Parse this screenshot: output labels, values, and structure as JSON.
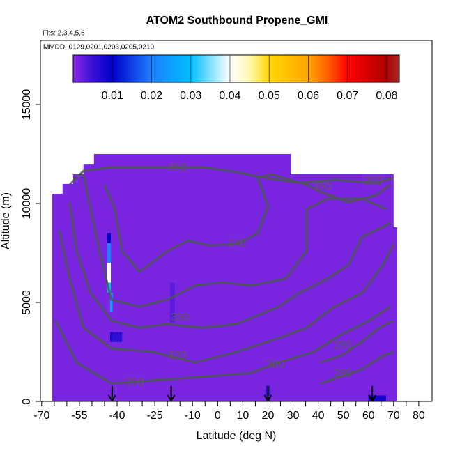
{
  "chart_data": {
    "type": "curtain",
    "title": "ATOM2 Southbound Propene_GMI",
    "subtitle": "Flts: 2,3,4,5,6",
    "annotation": "MMDD: 0129,0201,0203,0205,0210",
    "x_label": "Latitude (deg N)",
    "y_label": "Altitude (m)",
    "xlim": [
      -70.5,
      85.3
    ],
    "ylim": [
      0,
      18240
    ],
    "xticks": [
      -70,
      -55,
      -40,
      -25,
      -10,
      0,
      10,
      20,
      30,
      40,
      50,
      60,
      70,
      80
    ],
    "xminorticks": [
      -65,
      -60,
      -50,
      -45,
      -35,
      -30,
      -20,
      -15,
      -5,
      5,
      15,
      25,
      35,
      45,
      55,
      65,
      75
    ],
    "yticks": [
      0,
      5000,
      10000,
      15000
    ],
    "clim": [
      0,
      0.0832
    ],
    "cticks": [
      0.01,
      0.02,
      0.03,
      0.04,
      0.05,
      0.06,
      0.07,
      0.08
    ],
    "colormap": [
      [
        0,
        "#8a2be2"
      ],
      [
        0.005,
        "#3a10d8"
      ],
      [
        0.01,
        "#0000c8"
      ],
      [
        0.02,
        "#1e7fff"
      ],
      [
        0.03,
        "#00bfff"
      ],
      [
        0.04,
        "#ffffff"
      ],
      [
        0.045,
        "#fff8b0"
      ],
      [
        0.05,
        "#ffd700"
      ],
      [
        0.06,
        "#ffa500"
      ],
      [
        0.065,
        "#ff6000"
      ],
      [
        0.07,
        "#ff0000"
      ],
      [
        0.08,
        "#b00000"
      ],
      [
        0.0832,
        "#a52a2a"
      ]
    ],
    "field": {
      "value": 0.001,
      "outline": [
        [
          -65.8,
          0
        ],
        [
          -65.8,
          10490
        ],
        [
          -61.7,
          10490
        ],
        [
          -61.7,
          10990
        ],
        [
          -57.5,
          10990
        ],
        [
          -57.5,
          11480
        ],
        [
          -53.4,
          11480
        ],
        [
          -53.4,
          11970
        ],
        [
          -49.2,
          11970
        ],
        [
          -49.2,
          12500
        ],
        [
          29.2,
          12500
        ],
        [
          29.2,
          11480
        ],
        [
          70,
          11480
        ],
        [
          70,
          8800
        ],
        [
          71.4,
          8800
        ],
        [
          71.4,
          0
        ]
      ]
    },
    "cells": [
      {
        "lat": [
          -44,
          -42.5
        ],
        "alt": [
          8000,
          8500
        ],
        "value": 0.01
      },
      {
        "lat": [
          -44,
          -42.5
        ],
        "alt": [
          7000,
          8000
        ],
        "value": 0.02
      },
      {
        "lat": [
          -44,
          -42.5
        ],
        "alt": [
          6000,
          7000
        ],
        "value": 0.04
      },
      {
        "lat": [
          -44,
          -42.5
        ],
        "alt": [
          5500,
          6000
        ],
        "value": 0.03
      },
      {
        "lat": [
          -42.8,
          -41.8
        ],
        "alt": [
          4500,
          5500
        ],
        "value": 0.025
      },
      {
        "lat": [
          -42.8,
          -41.8
        ],
        "alt": [
          3000,
          3500
        ],
        "value": 0.008
      },
      {
        "lat": [
          -42,
          -38
        ],
        "alt": [
          3000,
          3500
        ],
        "value": 0.006
      },
      {
        "lat": [
          -19,
          -17
        ],
        "alt": [
          4000,
          6000
        ],
        "value": 0.003
      },
      {
        "lat": [
          19,
          21
        ],
        "alt": [
          0,
          800
        ],
        "value": 0.004
      },
      {
        "lat": [
          60,
          67
        ],
        "alt": [
          0,
          300
        ],
        "value": 0.008
      }
    ],
    "contours": [
      {
        "level": 350,
        "points": [
          [
            -58.9,
            10950
          ],
          [
            -53.4,
            11650
          ],
          [
            -42.3,
            11830
          ],
          [
            -23,
            11830
          ],
          [
            -6,
            11830
          ],
          [
            4.9,
            11650
          ],
          [
            18.8,
            11300
          ],
          [
            32.6,
            11050
          ],
          [
            46.4,
            11200
          ],
          [
            63,
            11050
          ],
          [
            70,
            11300
          ]
        ]
      },
      {
        "level": 340,
        "points": [
          [
            -45,
            10950
          ],
          [
            -40.9,
            9720
          ],
          [
            -38,
            7600
          ],
          [
            -31,
            6550
          ],
          [
            -20,
            7600
          ],
          [
            -11.8,
            8130
          ],
          [
            -3.5,
            7890
          ],
          [
            7.6,
            7960
          ],
          [
            15.9,
            8490
          ],
          [
            20.1,
            9890
          ],
          [
            15.9,
            11300
          ],
          [
            21.5,
            11480
          ],
          [
            35.4,
            10950
          ],
          [
            40.9,
            10600
          ],
          [
            52,
            10070
          ],
          [
            63,
            10420
          ],
          [
            68.6,
            10950
          ]
        ]
      },
      {
        "level": 330,
        "points": [
          [
            -53.4,
            11480
          ],
          [
            -50.6,
            9720
          ],
          [
            -46.4,
            7250
          ],
          [
            -42.3,
            5140
          ],
          [
            -31.2,
            4790
          ],
          [
            -20,
            5140
          ],
          [
            -9,
            5850
          ],
          [
            2,
            6020
          ],
          [
            13.2,
            5850
          ],
          [
            27,
            6200
          ],
          [
            35.4,
            7600
          ],
          [
            35.4,
            9720
          ],
          [
            43.7,
            10250
          ],
          [
            57.5,
            10250
          ],
          [
            67.2,
            9720
          ]
        ]
      },
      {
        "level": 320,
        "points": [
          [
            -58.9,
            10070
          ],
          [
            -56.1,
            7600
          ],
          [
            -50.6,
            5490
          ],
          [
            -42.3,
            4080
          ],
          [
            -31.2,
            3730
          ],
          [
            -20,
            3910
          ],
          [
            -6.2,
            3730
          ],
          [
            7.6,
            3910
          ],
          [
            24.3,
            4790
          ],
          [
            32.6,
            5490
          ],
          [
            43.7,
            6200
          ],
          [
            52,
            6900
          ],
          [
            57.5,
            8310
          ],
          [
            68.6,
            9010
          ]
        ]
      },
      {
        "level": 310,
        "points": [
          [
            -63,
            8660
          ],
          [
            -58.9,
            6200
          ],
          [
            -53.4,
            3730
          ],
          [
            -42.3,
            2680
          ],
          [
            -25.6,
            2500
          ],
          [
            -9,
            1970
          ],
          [
            7.6,
            2500
          ],
          [
            24.3,
            3200
          ],
          [
            35.4,
            3730
          ],
          [
            46.4,
            4790
          ],
          [
            57.5,
            5490
          ],
          [
            65.8,
            6900
          ],
          [
            70,
            7960
          ]
        ]
      },
      {
        "level": 300,
        "points": [
          [
            -64.5,
            4080
          ],
          [
            -56.1,
            1970
          ],
          [
            -42.3,
            915
          ],
          [
            -22.9,
            1090
          ],
          [
            -3.5,
            1270
          ],
          [
            13.2,
            1440
          ],
          [
            24.3,
            1970
          ],
          [
            38.1,
            2500
          ],
          [
            49.2,
            3380
          ],
          [
            60.3,
            4080
          ],
          [
            68.6,
            4790
          ]
        ]
      },
      {
        "level": 290,
        "points": [
          [
            40.9,
            1970
          ],
          [
            49.2,
            2320
          ],
          [
            57.5,
            3030
          ],
          [
            64.4,
            3730
          ],
          [
            70,
            4080
          ]
        ]
      },
      {
        "level": 280,
        "points": [
          [
            40.9,
            915
          ],
          [
            49.2,
            1270
          ],
          [
            57.5,
            1620
          ],
          [
            65.8,
            2320
          ],
          [
            70,
            2500
          ]
        ]
      }
    ],
    "contour_labels": [
      {
        "level": 350,
        "lat": -16,
        "alt": 11800
      },
      {
        "level": 350,
        "lat": 41.5,
        "alt": 10850
      },
      {
        "level": 350,
        "lat": 62,
        "alt": 11100
      },
      {
        "level": 340,
        "lat": 7.6,
        "alt": 7960
      },
      {
        "level": 330,
        "lat": -15,
        "alt": 4230
      },
      {
        "level": 320,
        "lat": -16,
        "alt": 2290
      },
      {
        "level": 300,
        "lat": -33,
        "alt": 960
      },
      {
        "level": 300,
        "lat": 23,
        "alt": 1830
      },
      {
        "level": 290,
        "lat": 49.8,
        "alt": 2820
      },
      {
        "level": 280,
        "lat": 49.8,
        "alt": 1400
      }
    ],
    "markers": [
      -42,
      -18.5,
      20,
      61.5
    ]
  }
}
